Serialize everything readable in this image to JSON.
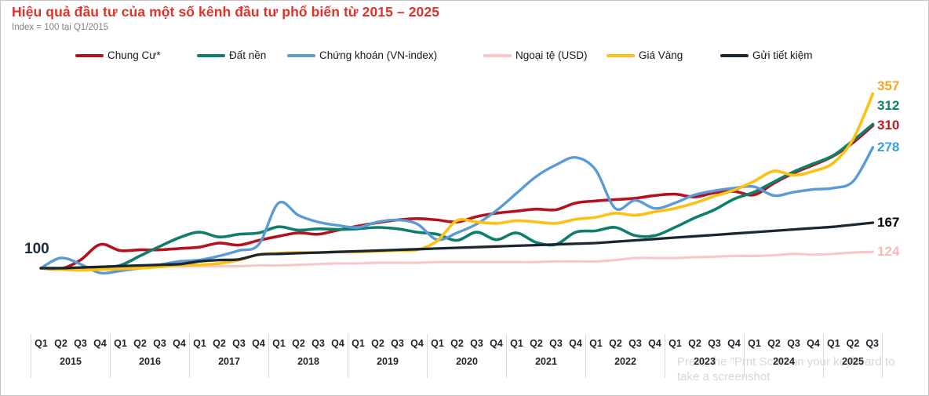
{
  "header": {
    "title_color": "#e0322b",
    "subtitle_color": "#828282"
  },
  "watermark": "Press the \"Prnt Scrn\" on your keyboard to take a screenshot",
  "chart_data": {
    "type": "line",
    "title": "Hiệu quả đầu tư của một số kênh đầu tư phổ biến từ 2015 – 2025",
    "index_note": "Index = 100 tại Q1/2015",
    "baseline_label": "100",
    "legend_position": "top",
    "grid": false,
    "ylim": [
      88,
      370
    ],
    "x_axis": {
      "years": [
        {
          "year": "2015",
          "quarters": [
            "Q1",
            "Q2",
            "Q3",
            "Q4"
          ]
        },
        {
          "year": "2016",
          "quarters": [
            "Q1",
            "Q2",
            "Q3",
            "Q4"
          ]
        },
        {
          "year": "2017",
          "quarters": [
            "Q1",
            "Q2",
            "Q3",
            "Q4"
          ]
        },
        {
          "year": "2018",
          "quarters": [
            "Q1",
            "Q2",
            "Q3",
            "Q4"
          ]
        },
        {
          "year": "2019",
          "quarters": [
            "Q1",
            "Q2",
            "Q3",
            "Q4"
          ]
        },
        {
          "year": "2020",
          "quarters": [
            "Q1",
            "Q2",
            "Q3",
            "Q4"
          ]
        },
        {
          "year": "2021",
          "quarters": [
            "Q1",
            "Q2",
            "Q3",
            "Q4"
          ]
        },
        {
          "year": "2022",
          "quarters": [
            "Q1",
            "Q2",
            "Q3",
            "Q4"
          ]
        },
        {
          "year": "2023",
          "quarters": [
            "Q1",
            "Q2",
            "Q3",
            "Q4"
          ]
        },
        {
          "year": "2024",
          "quarters": [
            "Q1",
            "Q2",
            "Q3",
            "Q4"
          ]
        },
        {
          "year": "2025",
          "quarters": [
            "Q1",
            "Q2",
            "Q3"
          ]
        }
      ]
    },
    "series": [
      {
        "name": "Chung Cư*",
        "color": "#b5121f",
        "label_color": "#c4161c",
        "end_value": 310,
        "values": [
          100,
          99,
          112,
          135,
          126,
          127,
          127,
          129,
          131,
          137,
          134,
          141,
          147,
          152,
          150,
          156,
          162,
          167,
          171,
          173,
          171,
          168,
          176,
          181,
          184,
          187,
          186,
          196,
          199,
          201,
          203,
          207,
          209,
          205,
          211,
          213,
          208,
          225,
          240,
          252,
          265,
          285,
          310
        ]
      },
      {
        "name": "Đất nền",
        "color": "#0e7e6d",
        "label_color": "#0e7e6d",
        "end_value": 312,
        "values": [
          100,
          100,
          100,
          101,
          104,
          118,
          132,
          145,
          153,
          146,
          150,
          152,
          161,
          156,
          158,
          157,
          158,
          160,
          158,
          153,
          150,
          141,
          153,
          142,
          152,
          138,
          135,
          153,
          155,
          160,
          148,
          148,
          160,
          174,
          186,
          202,
          212,
          227,
          242,
          254,
          266,
          288,
          312
        ]
      },
      {
        "name": "Chứng khoán (VN-index)",
        "color": "#5b9bd5",
        "label_color": "#3b9ee2",
        "end_value": 278,
        "values": [
          100,
          115,
          106,
          93,
          96,
          100,
          105,
          110,
          112,
          118,
          126,
          135,
          196,
          178,
          168,
          163,
          160,
          168,
          171,
          165,
          142,
          152,
          165,
          185,
          210,
          235,
          252,
          263,
          245,
          188,
          200,
          188,
          196,
          208,
          214,
          218,
          220,
          207,
          212,
          216,
          218,
          228,
          278
        ]
      },
      {
        "name": "Ngoại tệ (USD)",
        "color": "#f9c7ca",
        "label_color": "#f5b8bb",
        "end_value": 124,
        "values": [
          100,
          100,
          101,
          102,
          102,
          102,
          103,
          103,
          103,
          103,
          103,
          104,
          104,
          105,
          106,
          107,
          107,
          108,
          108,
          108,
          109,
          109,
          109,
          109,
          109,
          109,
          110,
          110,
          110,
          112,
          115,
          115,
          115,
          116,
          117,
          118,
          118,
          119,
          121,
          120,
          121,
          123,
          124
        ]
      },
      {
        "name": "Giá Vàng",
        "color": "#fdc013",
        "label_color": "#f5a81c",
        "end_value": 357,
        "values": [
          100,
          98,
          97,
          98,
          99,
          100,
          102,
          104,
          105,
          107,
          112,
          120,
          122,
          123,
          123,
          124,
          124,
          125,
          126,
          127,
          140,
          170,
          168,
          166,
          170,
          168,
          166,
          172,
          175,
          181,
          178,
          183,
          188,
          196,
          206,
          215,
          228,
          243,
          237,
          243,
          255,
          290,
          357
        ]
      },
      {
        "name": "Gửi tiết kiệm",
        "color": "#1a2733",
        "label_color": "#000000",
        "end_value": 167,
        "values": [
          100,
          100,
          101,
          102,
          103,
          104,
          105,
          106,
          110,
          112,
          113,
          120,
          121,
          122,
          123,
          124,
          125,
          126,
          127,
          128,
          129,
          130,
          131,
          132,
          133,
          134,
          135,
          136,
          137,
          139,
          141,
          143,
          145,
          147,
          149,
          151,
          153,
          155,
          157,
          159,
          161,
          164,
          167
        ]
      }
    ]
  }
}
